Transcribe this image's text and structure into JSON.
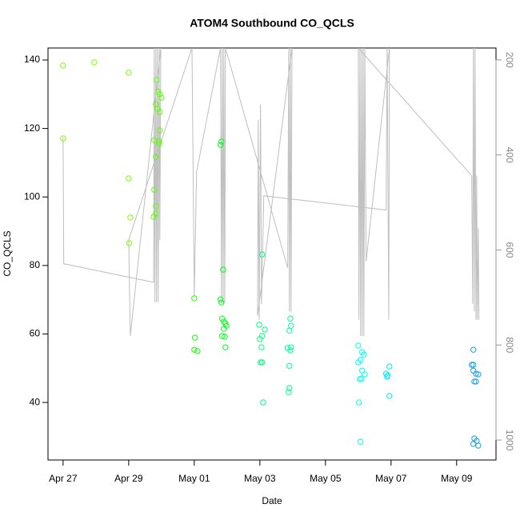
{
  "chart_data": {
    "type": "scatter",
    "title": "ATOM4 Southbound CO_QCLS",
    "xlabel": "Date",
    "ylabel": "CO_QCLS",
    "xlim": [
      -0.46,
      13.2
    ],
    "xticks": [
      {
        "value": 0,
        "label": "Apr 27"
      },
      {
        "value": 2,
        "label": "Apr 29"
      },
      {
        "value": 4,
        "label": "May 01"
      },
      {
        "value": 6,
        "label": "May 03"
      },
      {
        "value": 8,
        "label": "May 05"
      },
      {
        "value": 10,
        "label": "May 07"
      },
      {
        "value": 12,
        "label": "May 09"
      }
    ],
    "ylim": [
      23.2,
      143.5
    ],
    "yticks": [
      40,
      60,
      80,
      100,
      120,
      140
    ],
    "y2lim": [
      1042,
      175
    ],
    "y2ticks": [
      200,
      400,
      600,
      800,
      1000
    ],
    "series": [
      {
        "type": "line",
        "axis": "y2",
        "color": "#bebebe",
        "x": [
          0,
          0.02,
          2.76,
          2.78,
          2.8,
          2.83,
          2.85,
          2.88,
          2.9,
          2.93,
          2.95,
          2.98,
          2.05,
          2.0,
          3.93,
          4.0,
          4.07,
          4.8,
          4.83,
          4.85,
          4.88,
          4.9,
          4.93,
          4.95,
          6.85,
          6.88,
          6.9,
          6.93,
          6.95,
          6.98,
          5.93,
          5.95,
          5.98,
          6.02,
          6.05,
          6.12,
          9.85,
          9.88,
          9.93,
          9.95,
          9.24,
          9.2,
          9.17,
          9.15,
          9.12,
          9.1,
          9.07,
          9.05,
          9.02,
          9.0,
          12.46,
          12.49,
          12.51,
          12.54,
          12.56,
          12.59,
          12.61,
          12.63,
          12.66,
          12.68
        ],
        "values": [
          363,
          629,
          668,
          175,
          710,
          175,
          710,
          175,
          710,
          175,
          579,
          175,
          781,
          579,
          175,
          697,
          436,
          175,
          710,
          175,
          714,
          175,
          710,
          175,
          638,
          175,
          730,
          175,
          730,
          175,
          739,
          326,
          747,
          293,
          714,
          486,
          516,
          175,
          747,
          175,
          624,
          175,
          781,
          175,
          781,
          175,
          781,
          175,
          747,
          175,
          444,
          714,
          175,
          730,
          175,
          747,
          444,
          747,
          554,
          747
        ]
      },
      {
        "color": "#7fff00",
        "x": [
          0,
          0,
          0.95,
          2.0,
          2.0,
          2.05,
          2.02
        ],
        "values": [
          138.4,
          117.1,
          139.3,
          136.3,
          105.4,
          94,
          86.5
        ]
      },
      {
        "color": "#5cff00",
        "x": [
          2.76,
          2.78,
          2.83,
          2.83,
          2.83,
          2.78,
          2.93,
          2.93,
          2.85,
          2.9,
          2.95,
          3.0,
          2.83,
          2.88,
          2.95,
          2.95
        ],
        "values": [
          94.2,
          102.1,
          95.1,
          97.3,
          111.7,
          116.6,
          116.2,
          115.5,
          134.2,
          130.7,
          130,
          129,
          127.1,
          125.7,
          124.8,
          119.4
        ]
      },
      {
        "color": "#1aff00",
        "x": [
          4.0,
          4.02,
          4.0,
          4.1
        ],
        "values": [
          70.4,
          58.9,
          55.4,
          55
        ]
      },
      {
        "color": "#00ff1a",
        "x": [
          4.8,
          4.83,
          4.88,
          4.8,
          4.83,
          4.85,
          4.9,
          4.95,
          4.98,
          4.9,
          4.85,
          4.93,
          4.95
        ],
        "values": [
          115.2,
          116.2,
          78.8,
          70.1,
          69.2,
          64.5,
          63.6,
          63.1,
          62.4,
          61.5,
          59.4,
          59.2,
          56.1
        ]
      },
      {
        "color": "#00ff80",
        "x": [
          6.07,
          5.98,
          6.15,
          6.07,
          6.0,
          6.05,
          6.02,
          6.07,
          6.1
        ],
        "values": [
          83.2,
          62.7,
          61.3,
          59.4,
          58.5,
          56.1,
          51.7,
          51.7,
          40
        ]
      },
      {
        "color": "#00ff99",
        "x": [
          6.93,
          6.95,
          6.9,
          6.85,
          6.95,
          6.93,
          6.9,
          6.9,
          6.88
        ],
        "values": [
          64.5,
          62.4,
          61,
          55.9,
          56.1,
          55.2,
          50.7,
          44.2,
          43
        ]
      },
      {
        "color": "#00ffee",
        "x": [
          9.0,
          9.12,
          9.17,
          9.07,
          9.0,
          9.12,
          9.2,
          9.05,
          9.1,
          9.02,
          9.07
        ],
        "values": [
          56.6,
          54.7,
          54,
          52.4,
          51.7,
          49.3,
          48.2,
          46.8,
          47,
          40,
          28.5
        ]
      },
      {
        "color": "#00e6ff",
        "x": [
          9.95,
          9.85,
          9.9,
          9.88,
          9.95
        ],
        "values": [
          50.5,
          48.4,
          47.9,
          47.5,
          41.9
        ]
      },
      {
        "color": "#1a9fe6",
        "x": [
          12.51,
          12.46,
          12.51,
          12.51,
          12.59,
          12.66,
          12.54,
          12.59,
          12.54,
          12.61,
          12.51,
          12.66
        ],
        "values": [
          55.4,
          51,
          51,
          49.3,
          48.4,
          48.2,
          46.1,
          46.1,
          29.5,
          28.8,
          27.9,
          27.4
        ]
      }
    ]
  }
}
